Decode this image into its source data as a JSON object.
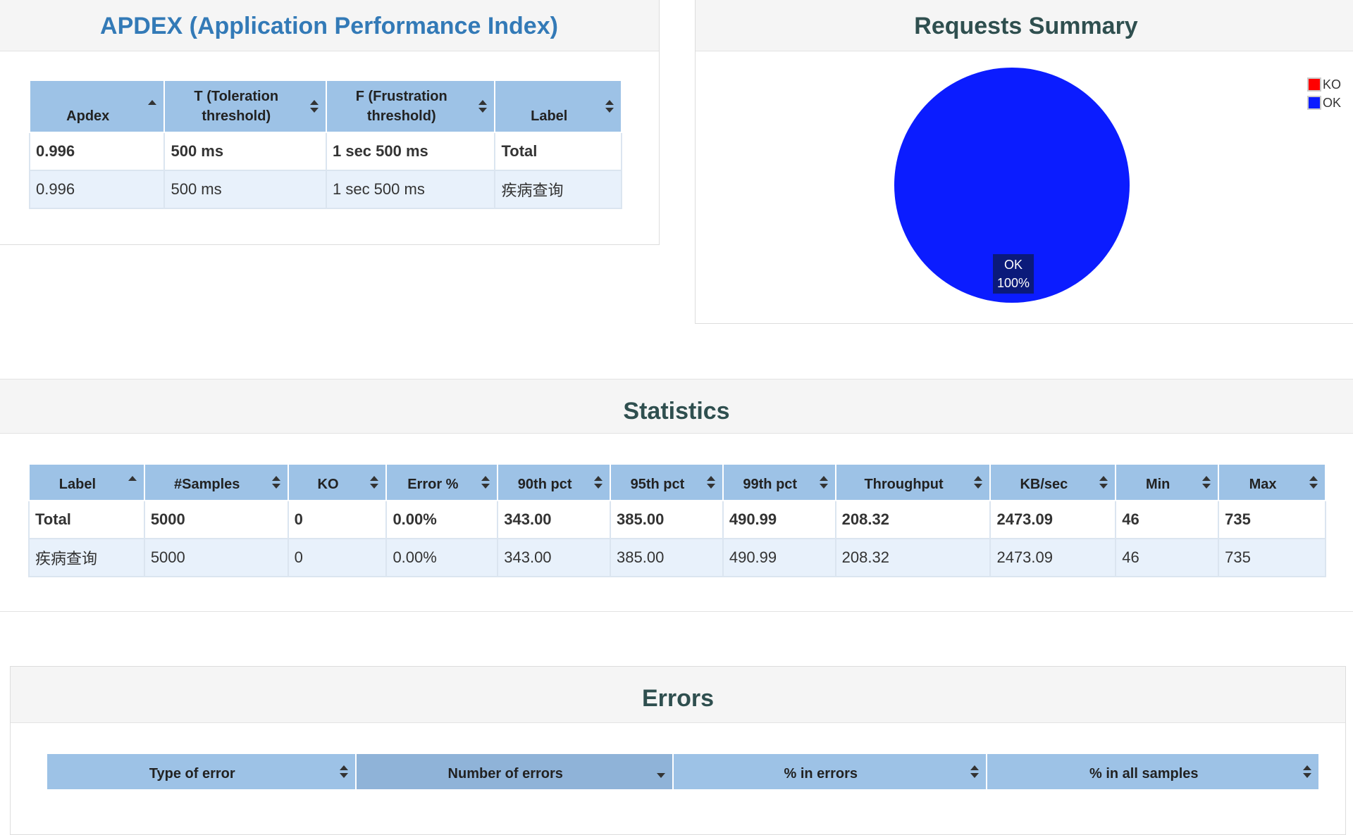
{
  "apdex": {
    "title": "APDEX (Application Performance Index)",
    "columns": [
      "Apdex",
      "T (Toleration threshold)",
      "F (Frustration threshold)",
      "Label"
    ],
    "rows": [
      [
        "0.996",
        "500 ms",
        "1 sec 500 ms",
        "Total"
      ],
      [
        "0.996",
        "500 ms",
        "1 sec 500 ms",
        "疾病查询"
      ]
    ]
  },
  "summary": {
    "title": "Requests Summary",
    "legend": [
      {
        "label": "KO",
        "color": "#ff0000"
      },
      {
        "label": "OK",
        "color": "#0b1cff"
      }
    ],
    "slice_label": "OK",
    "slice_pct": "100%"
  },
  "chart_data": {
    "type": "pie",
    "title": "Requests Summary",
    "slices": [
      {
        "label": "KO",
        "value": 0,
        "color": "#ff0000"
      },
      {
        "label": "OK",
        "value": 100,
        "color": "#0b1cff"
      }
    ],
    "legend_position": "top-right"
  },
  "statistics": {
    "title": "Statistics",
    "columns": [
      "Label",
      "#Samples",
      "KO",
      "Error %",
      "90th pct",
      "95th pct",
      "99th pct",
      "Throughput",
      "KB/sec",
      "Min",
      "Max"
    ],
    "rows": [
      [
        "Total",
        "5000",
        "0",
        "0.00%",
        "343.00",
        "385.00",
        "490.99",
        "208.32",
        "2473.09",
        "46",
        "735"
      ],
      [
        "疾病查询",
        "5000",
        "0",
        "0.00%",
        "343.00",
        "385.00",
        "490.99",
        "208.32",
        "2473.09",
        "46",
        "735"
      ]
    ]
  },
  "errors": {
    "title": "Errors",
    "columns": [
      "Type of error",
      "Number of errors",
      "% in errors",
      "% in all samples"
    ]
  }
}
